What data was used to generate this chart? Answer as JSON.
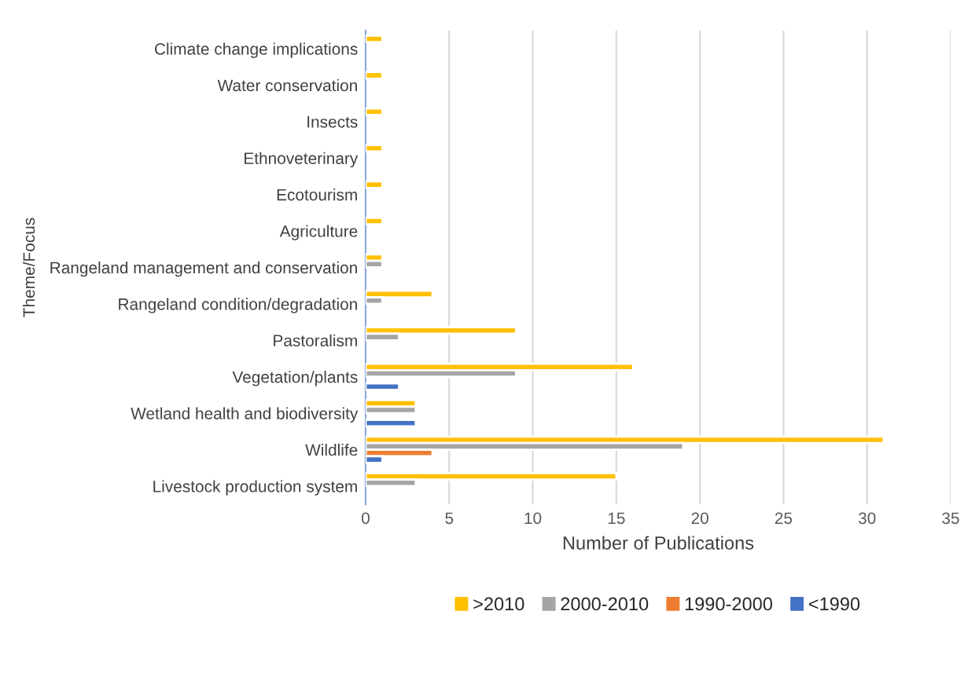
{
  "chart_data": {
    "type": "bar",
    "orientation": "horizontal",
    "xlabel": "Number of Publications",
    "ylabel": "Theme/Focus",
    "categories": [
      "Climate change implications",
      "Water conservation",
      "Insects",
      "Ethnoveterinary",
      "Ecotourism",
      "Agriculture",
      "Rangeland management and conservation",
      "Rangeland condition/degradation",
      "Pastoralism",
      "Vegetation/plants",
      "Wetland health and biodiversity",
      "Wildlife",
      "Livestock production system"
    ],
    "series": [
      {
        "name": ">2010",
        "color": "#ffc000",
        "values": [
          1,
          1,
          1,
          1,
          1,
          1,
          1,
          4,
          9,
          16,
          3,
          31,
          15
        ]
      },
      {
        "name": "2000-2010",
        "color": "#a5a5a5",
        "values": [
          null,
          null,
          null,
          null,
          null,
          null,
          1,
          1,
          2,
          9,
          3,
          19,
          3
        ]
      },
      {
        "name": "1990-2000",
        "color": "#ed7d31",
        "values": [
          null,
          null,
          null,
          null,
          null,
          null,
          null,
          null,
          null,
          null,
          null,
          4,
          null
        ]
      },
      {
        "name": "<1990",
        "color": "#4472c4",
        "values": [
          null,
          null,
          null,
          null,
          null,
          null,
          null,
          null,
          null,
          2,
          3,
          1,
          null
        ]
      }
    ],
    "xlim": [
      0,
      35
    ],
    "xticks": [
      0,
      5,
      10,
      15,
      20,
      25,
      30,
      35
    ],
    "grid": "x",
    "legend": "bottom"
  }
}
